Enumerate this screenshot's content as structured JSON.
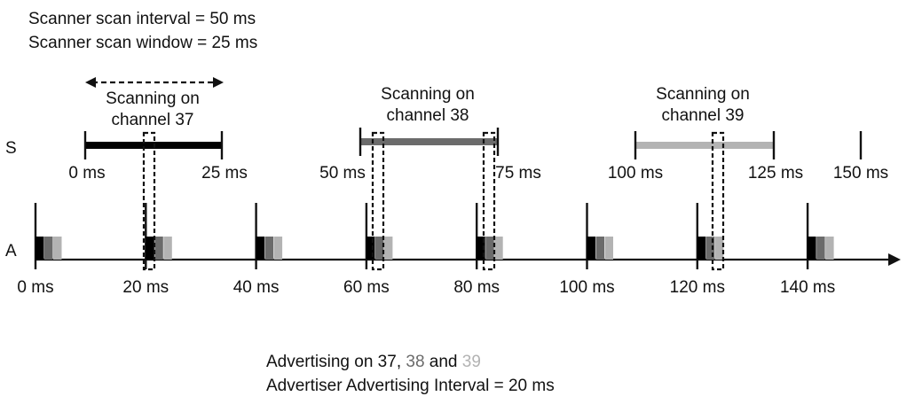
{
  "header": {
    "scan_interval": "Scanner scan interval = 50 ms",
    "scan_window": "Scanner scan window = 25 ms"
  },
  "rows": {
    "scanner": "S",
    "advertiser": "A"
  },
  "colors": {
    "ch37": "#000000",
    "ch38": "#6b6b6b",
    "ch39": "#b3b3b3"
  },
  "scan_windows": [
    {
      "channel": "37",
      "label_line1": "Scanning on",
      "label_line2": "channel 37",
      "start": "0 ms",
      "end": "25 ms",
      "color": "#000000"
    },
    {
      "channel": "38",
      "label_line1": "Scanning on",
      "label_line2": "channel 38",
      "start": "50 ms",
      "end": "75 ms",
      "color": "#6b6b6b"
    },
    {
      "channel": "39",
      "label_line1": "Scanning on",
      "label_line2": "channel 39",
      "start": "100 ms",
      "end": "125 ms",
      "color": "#b3b3b3"
    }
  ],
  "scanner_end_tick": "150 ms",
  "advertising_events": [
    "0 ms",
    "20 ms",
    "40 ms",
    "60 ms",
    "80 ms",
    "100 ms",
    "120 ms",
    "140 ms"
  ],
  "footer": {
    "prefix": "Advertising on 37, ",
    "ch38": "38",
    "and": " and ",
    "ch39": "39",
    "interval": "Advertiser Advertising Interval = 20 ms"
  }
}
